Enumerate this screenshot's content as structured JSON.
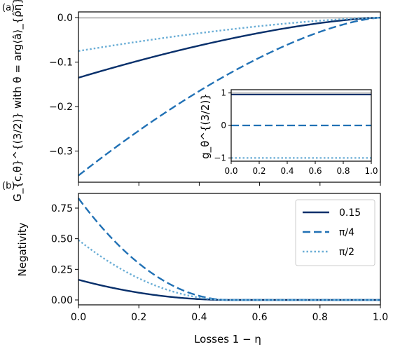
{
  "figure": {
    "panel_labels": [
      "(a)",
      "(b)"
    ],
    "xlabel": "Losses 1 − η"
  },
  "chart_data": [
    {
      "id": "a",
      "type": "line",
      "ylabel": "G_{c,θ}^{(3/2)} with θ = arg⟨â⟩_{ρ̂η}",
      "xlim": [
        0,
        1
      ],
      "ylim": [
        -0.37,
        0.013
      ],
      "xticks": [
        0.0,
        0.2,
        0.4,
        0.6,
        0.8,
        1.0
      ],
      "xtick_labels_visible": false,
      "yticks": [
        0.0,
        -0.1,
        -0.2,
        -0.3
      ],
      "ytick_labels": [
        "0.0",
        "−0.1",
        "−0.2",
        "−0.3"
      ],
      "reference_line": 0,
      "series": [
        {
          "name": "0.15",
          "color": "#08306b",
          "dash": "solid",
          "y0": -0.135
        },
        {
          "name": "π/4",
          "color": "#2171b5",
          "dash": "dashed",
          "y0": -0.355
        },
        {
          "name": "π/2",
          "color": "#6baed6",
          "dash": "dotted",
          "y0": -0.075
        }
      ],
      "shape": "y = y0·(1−x)^1.5"
    },
    {
      "id": "inset",
      "type": "line",
      "ylabel": "g_θ^{(3/2)}",
      "xlim": [
        0,
        1
      ],
      "ylim": [
        -1.1,
        1.1
      ],
      "xticks": [
        0.0,
        0.2,
        0.4,
        0.6,
        0.8,
        1.0
      ],
      "xtick_labels": [
        "0.0",
        "0.2",
        "0.4",
        "0.6",
        "0.8",
        "1.0"
      ],
      "yticks": [
        1,
        0,
        -1
      ],
      "ytick_labels": [
        "1",
        "0",
        "−1"
      ],
      "reference_line": 1,
      "series": [
        {
          "name": "0.15",
          "color": "#08306b",
          "dash": "solid",
          "value": 0.95
        },
        {
          "name": "π/4",
          "color": "#2171b5",
          "dash": "dashed",
          "value": 0.0
        },
        {
          "name": "π/2",
          "color": "#6baed6",
          "dash": "dotted",
          "value": -1.0
        }
      ]
    },
    {
      "id": "b",
      "type": "line",
      "ylabel": "Negativity",
      "xlim": [
        0,
        1
      ],
      "ylim": [
        -0.04,
        0.87
      ],
      "xticks": [
        0.0,
        0.2,
        0.4,
        0.6,
        0.8,
        1.0
      ],
      "xtick_labels": [
        "0.0",
        "0.2",
        "0.4",
        "0.6",
        "0.8",
        "1.0"
      ],
      "yticks": [
        0.0,
        0.25,
        0.5,
        0.75
      ],
      "ytick_labels": [
        "0.00",
        "0.25",
        "0.50",
        "0.75"
      ],
      "legend": {
        "placement": "top-right",
        "entries": [
          "0.15",
          "π/4",
          "π/2"
        ]
      },
      "series": [
        {
          "name": "0.15",
          "color": "#08306b",
          "dash": "solid",
          "y0": 0.165,
          "x_zero": 0.5
        },
        {
          "name": "π/4",
          "color": "#2171b5",
          "dash": "dashed",
          "y0": 0.83,
          "x_zero": 0.5
        },
        {
          "name": "π/2",
          "color": "#6baed6",
          "dash": "dotted",
          "y0": 0.49,
          "x_zero": 0.5
        }
      ],
      "shape": "y = y0·(1−x/x_zero)^2, zero beyond x_zero"
    }
  ]
}
